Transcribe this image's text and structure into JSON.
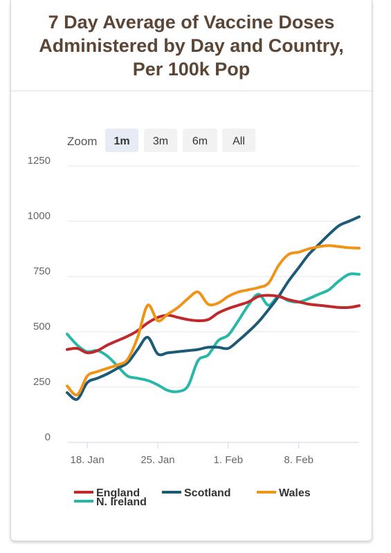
{
  "title": "7 Day Average of Vaccine Doses Administered by Day and Country, Per 100k Pop",
  "zoom": {
    "label": "Zoom",
    "buttons": [
      {
        "label": "1m",
        "active": true
      },
      {
        "label": "3m",
        "active": false
      },
      {
        "label": "6m",
        "active": false
      },
      {
        "label": "All",
        "active": false
      }
    ]
  },
  "chart_data": {
    "type": "line",
    "title": "7 Day Average of Vaccine Doses Administered by Day and Country, Per 100k Pop",
    "xlabel": "",
    "ylabel": "",
    "ylim": [
      0,
      1250
    ],
    "yticks": [
      0,
      250,
      500,
      750,
      1000,
      1250
    ],
    "xlim": [
      "2021-01-16",
      "2021-02-14"
    ],
    "xticks": [
      {
        "date": "2021-01-18",
        "label": "18. Jan"
      },
      {
        "date": "2021-01-25",
        "label": "25. Jan"
      },
      {
        "date": "2021-02-01",
        "label": "1. Feb"
      },
      {
        "date": "2021-02-08",
        "label": "8. Feb"
      }
    ],
    "grid": true,
    "legend_position": "bottom",
    "x": [
      "2021-01-16",
      "2021-01-17",
      "2021-01-18",
      "2021-01-19",
      "2021-01-20",
      "2021-01-21",
      "2021-01-22",
      "2021-01-23",
      "2021-01-24",
      "2021-01-25",
      "2021-01-26",
      "2021-01-27",
      "2021-01-28",
      "2021-01-29",
      "2021-01-30",
      "2021-01-31",
      "2021-02-01",
      "2021-02-02",
      "2021-02-03",
      "2021-02-04",
      "2021-02-05",
      "2021-02-06",
      "2021-02-07",
      "2021-02-08",
      "2021-02-09",
      "2021-02-10",
      "2021-02-11",
      "2021-02-12",
      "2021-02-13",
      "2021-02-14"
    ],
    "series": [
      {
        "name": "England",
        "color": "#c0282b",
        "values": [
          420,
          425,
          405,
          415,
          440,
          460,
          480,
          505,
          540,
          565,
          575,
          565,
          555,
          550,
          555,
          585,
          605,
          620,
          635,
          660,
          665,
          660,
          645,
          635,
          625,
          620,
          615,
          610,
          610,
          618
        ]
      },
      {
        "name": "Scotland",
        "color": "#1d5a78",
        "values": [
          225,
          195,
          270,
          290,
          310,
          335,
          360,
          420,
          475,
          400,
          405,
          410,
          415,
          420,
          430,
          430,
          425,
          460,
          500,
          545,
          600,
          660,
          730,
          790,
          850,
          895,
          940,
          980,
          1000,
          1020
        ]
      },
      {
        "name": "Wales",
        "color": "#f09418",
        "values": [
          255,
          215,
          300,
          320,
          335,
          350,
          375,
          475,
          620,
          550,
          580,
          610,
          650,
          680,
          625,
          630,
          660,
          680,
          690,
          700,
          720,
          800,
          850,
          860,
          875,
          885,
          890,
          885,
          880,
          878
        ]
      },
      {
        "name": "N. Ireland",
        "color": "#27b8a8",
        "values": [
          490,
          440,
          410,
          415,
          390,
          345,
          300,
          290,
          280,
          260,
          235,
          230,
          255,
          370,
          395,
          460,
          485,
          550,
          620,
          670,
          620,
          660,
          640,
          635,
          650,
          670,
          690,
          730,
          760,
          760
        ]
      }
    ]
  }
}
